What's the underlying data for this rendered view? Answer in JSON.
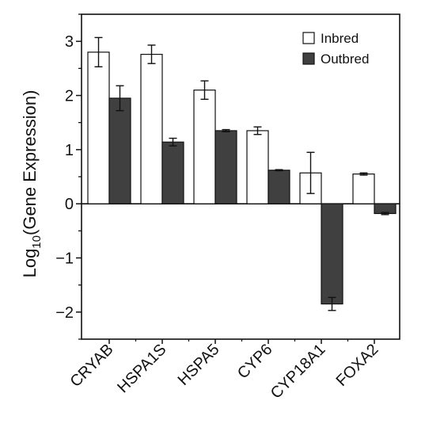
{
  "chart_data": {
    "type": "bar",
    "title": "",
    "xlabel": "",
    "ylabel": {
      "prefix": "Log",
      "subscript": "10",
      "suffix": "(Gene Expression)"
    },
    "categories": [
      "CRYAB",
      "HSPA1S",
      "HSPA5",
      "CYP6",
      "CYP18A1",
      "FOXA2"
    ],
    "series": [
      {
        "name": "Inbred",
        "color": "#ffffff",
        "values": [
          2.8,
          2.76,
          2.1,
          1.35,
          0.57,
          0.55
        ],
        "errors": [
          0.27,
          0.17,
          0.17,
          0.07,
          0.38,
          0.02
        ]
      },
      {
        "name": "Outbred",
        "color": "#404040",
        "values": [
          1.95,
          1.14,
          1.35,
          0.62,
          -1.85,
          -0.18
        ],
        "errors": [
          0.23,
          0.07,
          0.02,
          0.01,
          0.12,
          0.02
        ]
      }
    ],
    "ylim": [
      -2.5,
      3.5
    ],
    "yticks": [
      -2,
      -1,
      0,
      1,
      2,
      3
    ],
    "ytick_labels": [
      "−2",
      "−1",
      "0",
      "1",
      "2",
      "3"
    ],
    "legend_position": "top-right",
    "grid": false
  }
}
